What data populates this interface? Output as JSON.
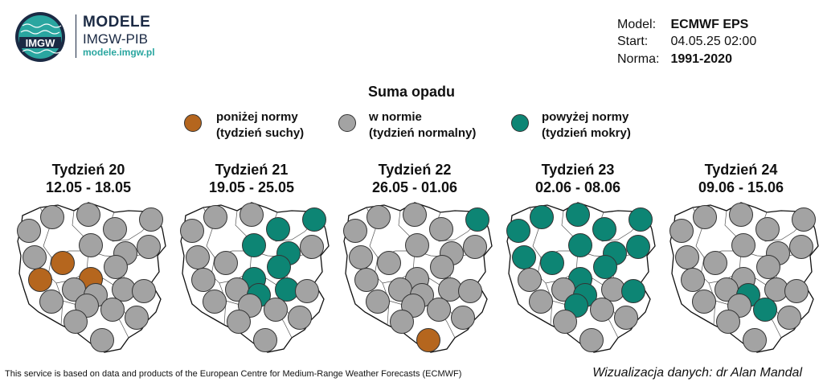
{
  "brand": {
    "badge_text": "IMGW",
    "name": "MODELE",
    "sub": "IMGW-PIB",
    "url": "modele.imgw.pl"
  },
  "meta": {
    "model_label": "Model:",
    "model_value": "ECMWF EPS",
    "start_label": "Start:",
    "start_value": "04.05.25 02:00",
    "norm_label": "Norma:",
    "norm_value": "1991-2020"
  },
  "title": "Suma opadu",
  "legend": [
    {
      "line1": "poniżej normy",
      "line2": "(tydzień suchy)",
      "color": "#b5661e"
    },
    {
      "line1": "w normie",
      "line2": "(tydzień normalny)",
      "color": "#a3a3a3"
    },
    {
      "line1": "powyżej normy",
      "line2": "(tydzień mokry)",
      "color": "#0d8574"
    }
  ],
  "weeks": [
    {
      "name": "Tydzień 20",
      "dates": "12.05 - 18.05",
      "stations": [
        "n",
        "n",
        "n",
        "n",
        "n",
        "n",
        "d",
        "n",
        "n",
        "n",
        "d",
        "d",
        "n",
        "n",
        "n",
        "n",
        "n",
        "n",
        "n",
        "n",
        "n",
        "n",
        "n"
      ]
    },
    {
      "name": "Tydzień 21",
      "dates": "19.05 - 25.05",
      "stations": [
        "n",
        "n",
        "n",
        "w",
        "w",
        "n",
        "n",
        "w",
        "w",
        "n",
        "n",
        "w",
        "w",
        "n",
        "w",
        "w",
        "n",
        "n",
        "n",
        "n",
        "n",
        "n",
        "n"
      ]
    },
    {
      "name": "Tydzień 22",
      "dates": "26.05 - 01.06",
      "stations": [
        "n",
        "n",
        "n",
        "n",
        "w",
        "n",
        "n",
        "n",
        "n",
        "n",
        "n",
        "n",
        "n",
        "n",
        "n",
        "n",
        "n",
        "n",
        "n",
        "n",
        "n",
        "n",
        "d"
      ]
    },
    {
      "name": "Tydzień 23",
      "dates": "02.06 - 08.06",
      "stations": [
        "w",
        "w",
        "w",
        "w",
        "w",
        "w",
        "w",
        "w",
        "w",
        "w",
        "n",
        "w",
        "w",
        "n",
        "w",
        "n",
        "w",
        "n",
        "w",
        "n",
        "n",
        "n",
        "n"
      ]
    },
    {
      "name": "Tydzień 24",
      "dates": "09.06 - 15.06",
      "stations": [
        "n",
        "n",
        "n",
        "n",
        "n",
        "n",
        "n",
        "n",
        "n",
        "n",
        "n",
        "n",
        "n",
        "n",
        "w",
        "n",
        "n",
        "n",
        "n",
        "w",
        "n",
        "n",
        "n"
      ]
    }
  ],
  "status_colors": {
    "d": "#b5661e",
    "n": "#a3a3a3",
    "w": "#0d8574"
  },
  "footer": {
    "credit": "This service is based on data and products of the European Centre for Medium-Range Weather Forecasts (ECMWF)",
    "author": "Wizualizacja danych: dr Alan Mandal"
  }
}
